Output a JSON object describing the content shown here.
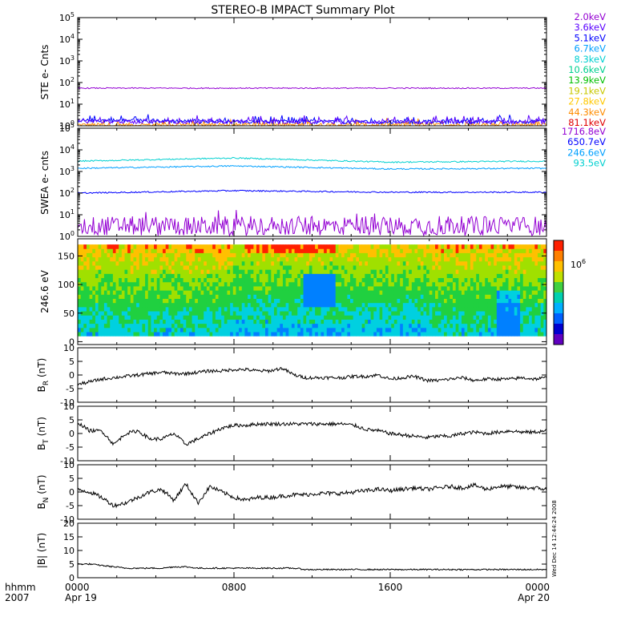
{
  "title": "STEREO-B IMPACT Summary Plot",
  "x_axis": {
    "ticks": [
      "0000",
      "0800",
      "1600",
      "0000"
    ],
    "dates": [
      "Apr 19",
      "",
      "",
      "Apr 20"
    ],
    "label_top": "hhmm",
    "label_bottom": "2007"
  },
  "side_stamp": "Wed Dec 14 12:44:24 2008",
  "panels": {
    "ste": {
      "ylabel": "STE e- Cnts",
      "tick_exponents": [
        "0",
        "1",
        "2",
        "3",
        "4",
        "5"
      ],
      "legend": [
        {
          "label": "2.0keV",
          "color": "#9400d3"
        },
        {
          "label": "3.6keV",
          "color": "#5a00ff"
        },
        {
          "label": "5.1keV",
          "color": "#0000ff"
        },
        {
          "label": "6.7keV",
          "color": "#00a0ff"
        },
        {
          "label": "8.3keV",
          "color": "#00d0d0"
        },
        {
          "label": "10.6keV",
          "color": "#00d090"
        },
        {
          "label": "13.9keV",
          "color": "#00c000"
        },
        {
          "label": "19.1keV",
          "color": "#c8c800"
        },
        {
          "label": "27.8keV",
          "color": "#ffc800"
        },
        {
          "label": "44.3keV",
          "color": "#ff8c00"
        },
        {
          "label": "81.1keV",
          "color": "#e00000"
        }
      ]
    },
    "swea": {
      "ylabel": "SWEA e- cnts",
      "tick_exponents": [
        "0",
        "1",
        "2",
        "3",
        "4",
        "5"
      ],
      "legend": [
        {
          "label": "1716.8eV",
          "color": "#9400d3"
        },
        {
          "label": "650.7eV",
          "color": "#0000ff"
        },
        {
          "label": "246.6eV",
          "color": "#00a0ff"
        },
        {
          "label": "93.5eV",
          "color": "#00d0d0"
        }
      ]
    },
    "pad": {
      "ylabel": "246.6 eV",
      "yticks": [
        "0",
        "50",
        "100",
        "150"
      ],
      "colorbar_label": "10",
      "colorbar_exp": "6"
    },
    "br": {
      "ylabel_main": "B",
      "ylabel_sub": "R",
      "ylabel_unit": " (nT)",
      "yticks": [
        "-10",
        "-5",
        "0",
        "5",
        "10"
      ]
    },
    "bt": {
      "ylabel_main": "B",
      "ylabel_sub": "T",
      "ylabel_unit": " (nT)",
      "yticks": [
        "-10",
        "-5",
        "0",
        "5",
        "10"
      ]
    },
    "bn": {
      "ylabel_main": "B",
      "ylabel_sub": "N",
      "ylabel_unit": " (nT)",
      "yticks": [
        "-10",
        "-5",
        "0",
        "5",
        "10"
      ]
    },
    "bmag": {
      "ylabel": "|B| (nT)",
      "yticks": [
        "0",
        "5",
        "10",
        "15",
        "20"
      ]
    }
  },
  "chart_data": [
    {
      "type": "line",
      "title": "STE e- Cnts",
      "x": [
        "0000",
        "0800",
        "1600",
        "0000"
      ],
      "ylim": [
        1,
        100000
      ],
      "yscale": "log",
      "series": [
        {
          "name": "2.0keV",
          "values": [
            55,
            55,
            55,
            55
          ]
        },
        {
          "name": "3.6keV",
          "values": [
            1.6,
            1.5,
            1.5,
            1.5
          ]
        },
        {
          "name": "5.1keV",
          "values": [
            1.8,
            1.6,
            1.5,
            1.6
          ]
        },
        {
          "name": "44.3keV",
          "values": [
            1.1,
            1.1,
            1.1,
            1.1
          ]
        }
      ]
    },
    {
      "type": "line",
      "title": "SWEA e- cnts",
      "x": [
        "0000",
        "0800",
        "1600",
        "0000"
      ],
      "ylim": [
        1,
        100000
      ],
      "yscale": "log",
      "series": [
        {
          "name": "1716.8eV",
          "values": [
            3,
            3,
            3,
            3
          ]
        },
        {
          "name": "650.7eV",
          "values": [
            100,
            130,
            110,
            110
          ]
        },
        {
          "name": "246.6eV",
          "values": [
            1400,
            1800,
            1300,
            1400
          ]
        },
        {
          "name": "93.5eV",
          "values": [
            3000,
            4200,
            2700,
            3000
          ]
        }
      ]
    },
    {
      "type": "heatmap",
      "title": "246.6 eV",
      "ylim": [
        0,
        180
      ],
      "colorbar": "10^6"
    },
    {
      "type": "line",
      "title": "BR (nT)",
      "ylim": [
        -10,
        10
      ],
      "series": [
        {
          "name": "BR",
          "values": [
            -3.5,
            -2.5,
            -1.5,
            -1,
            -0.5,
            0,
            0.5,
            1,
            0.5,
            0.5,
            1,
            1.5,
            1.5,
            2,
            2,
            1.5,
            1.5,
            2.5,
            0,
            -1,
            -1,
            -1,
            -1,
            -0.5,
            -0.5,
            0,
            -1.5,
            -1,
            -0.5,
            -2,
            -2,
            -1.5,
            -1,
            -2,
            -1.5,
            -1.5,
            -1.5,
            -1,
            -1.5,
            -1
          ]
        }
      ]
    },
    {
      "type": "line",
      "title": "BT (nT)",
      "ylim": [
        -10,
        10
      ],
      "series": [
        {
          "name": "BT",
          "values": [
            4,
            1,
            1,
            -4,
            0,
            1,
            -2,
            -2,
            0,
            -4,
            -2,
            0,
            2,
            3,
            3,
            3.5,
            3.5,
            3.5,
            3.5,
            3.5,
            3.5,
            3.5,
            3.5,
            3,
            1.5,
            1,
            0,
            -0.5,
            -1,
            -1.5,
            -1,
            -1,
            0,
            0.5,
            0,
            0.5,
            1,
            0.5,
            0.5,
            1
          ]
        }
      ]
    },
    {
      "type": "line",
      "title": "BN (nT)",
      "ylim": [
        -10,
        10
      ],
      "series": [
        {
          "name": "BN",
          "values": [
            1,
            0,
            -2,
            -5,
            -4,
            -2,
            0,
            1,
            -3,
            3,
            -4,
            2,
            0,
            -2,
            -3,
            -2,
            -2,
            -1.5,
            -1,
            -1,
            -0.5,
            -0.5,
            -0.5,
            0,
            0.5,
            1,
            0.5,
            1,
            1.5,
            1,
            1.5,
            2,
            1.5,
            2.5,
            1,
            2,
            2,
            1.5,
            1.5,
            1
          ]
        }
      ]
    },
    {
      "type": "line",
      "title": "|B| (nT)",
      "ylim": [
        0,
        20
      ],
      "series": [
        {
          "name": "|B|",
          "values": [
            5,
            5,
            4.5,
            4,
            3.5,
            3.5,
            3.5,
            3.5,
            4,
            4,
            3.5,
            3.5,
            3.5,
            3.5,
            3.5,
            3.5,
            3.5,
            3.5,
            3.5,
            3,
            3,
            3,
            3,
            3,
            3,
            3,
            3,
            3,
            3,
            3,
            3,
            3,
            3,
            3,
            3,
            3,
            3,
            3,
            3,
            3
          ]
        }
      ]
    }
  ]
}
